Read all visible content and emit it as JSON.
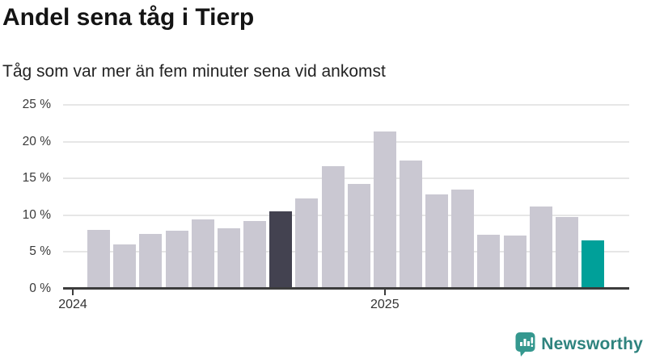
{
  "chart_data": {
    "type": "bar",
    "title": "Andel sena tåg i Tierp",
    "subtitle": "Tåg som var mer än fem minuter sena vid ankomst",
    "unit": "percent",
    "values": [
      8.0,
      6.0,
      7.4,
      7.9,
      9.4,
      8.2,
      9.2,
      10.5,
      12.2,
      16.6,
      14.2,
      21.4,
      17.4,
      12.8,
      13.5,
      7.3,
      7.2,
      11.1,
      9.7,
      6.5
    ],
    "bar_roles": [
      "base",
      "base",
      "base",
      "base",
      "base",
      "base",
      "base",
      "dark",
      "base",
      "base",
      "base",
      "base",
      "base",
      "base",
      "base",
      "base",
      "base",
      "base",
      "base",
      "accent"
    ],
    "ylim": [
      0,
      25
    ],
    "ytick_values": [
      0,
      5,
      10,
      15,
      20,
      25
    ],
    "ytick_labels": [
      "0 %",
      "5 %",
      "10 %",
      "15 %",
      "20 %",
      "25 %"
    ],
    "xtick_labels": [
      "2024",
      "2025"
    ],
    "xtick_slots": [
      0,
      12
    ],
    "grid": true,
    "legend": "none",
    "colors": {
      "base": "#cac8d2",
      "dark": "#434250",
      "accent": "#00a099",
      "axis": "#3c3c3c",
      "grid": "#e6e6e6",
      "text": "#333333"
    }
  },
  "footer": {
    "brand_label": "Newsworthy",
    "brand_icon": "newsworthy-logo-icon",
    "brand_color": "#2e837e",
    "icon_color": "#35988f"
  }
}
